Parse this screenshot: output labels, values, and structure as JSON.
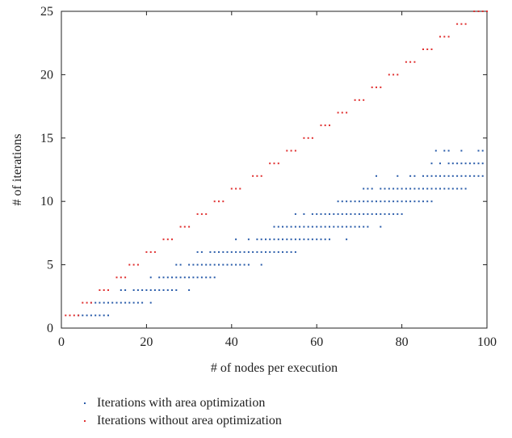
{
  "chart_data": {
    "type": "scatter",
    "title": "",
    "xlabel": "# of nodes per execution",
    "ylabel": "# of iterations",
    "xlim": [
      0,
      100
    ],
    "ylim": [
      0,
      25
    ],
    "xticks": [
      0,
      20,
      40,
      60,
      80,
      100
    ],
    "yticks": [
      0,
      5,
      10,
      15,
      20,
      25
    ],
    "grid": false,
    "legend_position": "bottom",
    "series": [
      {
        "name": "Iterations with area optimization",
        "color": "#2a5caa",
        "points": [
          [
            4,
            1
          ],
          [
            5,
            1
          ],
          [
            6,
            1
          ],
          [
            7,
            1
          ],
          [
            8,
            1
          ],
          [
            9,
            1
          ],
          [
            10,
            1
          ],
          [
            11,
            1
          ],
          [
            7,
            2
          ],
          [
            8,
            2
          ],
          [
            9,
            2
          ],
          [
            10,
            2
          ],
          [
            11,
            2
          ],
          [
            12,
            2
          ],
          [
            13,
            2
          ],
          [
            14,
            2
          ],
          [
            15,
            2
          ],
          [
            16,
            2
          ],
          [
            17,
            2
          ],
          [
            18,
            2
          ],
          [
            19,
            2
          ],
          [
            21,
            2
          ],
          [
            14,
            3
          ],
          [
            15,
            3
          ],
          [
            17,
            3
          ],
          [
            18,
            3
          ],
          [
            19,
            3
          ],
          [
            20,
            3
          ],
          [
            21,
            3
          ],
          [
            22,
            3
          ],
          [
            23,
            3
          ],
          [
            24,
            3
          ],
          [
            25,
            3
          ],
          [
            26,
            3
          ],
          [
            27,
            3
          ],
          [
            30,
            3
          ],
          [
            21,
            4
          ],
          [
            23,
            4
          ],
          [
            24,
            4
          ],
          [
            25,
            4
          ],
          [
            26,
            4
          ],
          [
            27,
            4
          ],
          [
            28,
            4
          ],
          [
            29,
            4
          ],
          [
            30,
            4
          ],
          [
            31,
            4
          ],
          [
            32,
            4
          ],
          [
            33,
            4
          ],
          [
            34,
            4
          ],
          [
            35,
            4
          ],
          [
            36,
            4
          ],
          [
            27,
            5
          ],
          [
            28,
            5
          ],
          [
            30,
            5
          ],
          [
            31,
            5
          ],
          [
            32,
            5
          ],
          [
            33,
            5
          ],
          [
            34,
            5
          ],
          [
            35,
            5
          ],
          [
            36,
            5
          ],
          [
            37,
            5
          ],
          [
            38,
            5
          ],
          [
            39,
            5
          ],
          [
            40,
            5
          ],
          [
            41,
            5
          ],
          [
            42,
            5
          ],
          [
            43,
            5
          ],
          [
            44,
            5
          ],
          [
            47,
            5
          ],
          [
            32,
            6
          ],
          [
            33,
            6
          ],
          [
            35,
            6
          ],
          [
            36,
            6
          ],
          [
            37,
            6
          ],
          [
            38,
            6
          ],
          [
            39,
            6
          ],
          [
            40,
            6
          ],
          [
            41,
            6
          ],
          [
            42,
            6
          ],
          [
            43,
            6
          ],
          [
            44,
            6
          ],
          [
            45,
            6
          ],
          [
            46,
            6
          ],
          [
            47,
            6
          ],
          [
            48,
            6
          ],
          [
            49,
            6
          ],
          [
            50,
            6
          ],
          [
            51,
            6
          ],
          [
            52,
            6
          ],
          [
            53,
            6
          ],
          [
            54,
            6
          ],
          [
            55,
            6
          ],
          [
            41,
            7
          ],
          [
            44,
            7
          ],
          [
            46,
            7
          ],
          [
            47,
            7
          ],
          [
            48,
            7
          ],
          [
            49,
            7
          ],
          [
            50,
            7
          ],
          [
            51,
            7
          ],
          [
            52,
            7
          ],
          [
            53,
            7
          ],
          [
            54,
            7
          ],
          [
            55,
            7
          ],
          [
            56,
            7
          ],
          [
            57,
            7
          ],
          [
            58,
            7
          ],
          [
            59,
            7
          ],
          [
            60,
            7
          ],
          [
            61,
            7
          ],
          [
            62,
            7
          ],
          [
            63,
            7
          ],
          [
            67,
            7
          ],
          [
            50,
            8
          ],
          [
            51,
            8
          ],
          [
            52,
            8
          ],
          [
            53,
            8
          ],
          [
            54,
            8
          ],
          [
            55,
            8
          ],
          [
            56,
            8
          ],
          [
            57,
            8
          ],
          [
            58,
            8
          ],
          [
            59,
            8
          ],
          [
            60,
            8
          ],
          [
            61,
            8
          ],
          [
            62,
            8
          ],
          [
            63,
            8
          ],
          [
            64,
            8
          ],
          [
            65,
            8
          ],
          [
            66,
            8
          ],
          [
            67,
            8
          ],
          [
            68,
            8
          ],
          [
            69,
            8
          ],
          [
            70,
            8
          ],
          [
            71,
            8
          ],
          [
            72,
            8
          ],
          [
            75,
            8
          ],
          [
            55,
            9
          ],
          [
            57,
            9
          ],
          [
            59,
            9
          ],
          [
            60,
            9
          ],
          [
            61,
            9
          ],
          [
            62,
            9
          ],
          [
            63,
            9
          ],
          [
            64,
            9
          ],
          [
            65,
            9
          ],
          [
            66,
            9
          ],
          [
            67,
            9
          ],
          [
            68,
            9
          ],
          [
            69,
            9
          ],
          [
            70,
            9
          ],
          [
            71,
            9
          ],
          [
            72,
            9
          ],
          [
            73,
            9
          ],
          [
            74,
            9
          ],
          [
            75,
            9
          ],
          [
            76,
            9
          ],
          [
            77,
            9
          ],
          [
            78,
            9
          ],
          [
            79,
            9
          ],
          [
            80,
            9
          ],
          [
            65,
            10
          ],
          [
            66,
            10
          ],
          [
            67,
            10
          ],
          [
            68,
            10
          ],
          [
            69,
            10
          ],
          [
            70,
            10
          ],
          [
            71,
            10
          ],
          [
            72,
            10
          ],
          [
            73,
            10
          ],
          [
            74,
            10
          ],
          [
            75,
            10
          ],
          [
            76,
            10
          ],
          [
            77,
            10
          ],
          [
            78,
            10
          ],
          [
            79,
            10
          ],
          [
            80,
            10
          ],
          [
            81,
            10
          ],
          [
            82,
            10
          ],
          [
            83,
            10
          ],
          [
            84,
            10
          ],
          [
            85,
            10
          ],
          [
            86,
            10
          ],
          [
            87,
            10
          ],
          [
            71,
            11
          ],
          [
            72,
            11
          ],
          [
            73,
            11
          ],
          [
            75,
            11
          ],
          [
            76,
            11
          ],
          [
            77,
            11
          ],
          [
            78,
            11
          ],
          [
            79,
            11
          ],
          [
            80,
            11
          ],
          [
            81,
            11
          ],
          [
            82,
            11
          ],
          [
            83,
            11
          ],
          [
            84,
            11
          ],
          [
            85,
            11
          ],
          [
            86,
            11
          ],
          [
            87,
            11
          ],
          [
            88,
            11
          ],
          [
            89,
            11
          ],
          [
            90,
            11
          ],
          [
            91,
            11
          ],
          [
            92,
            11
          ],
          [
            93,
            11
          ],
          [
            94,
            11
          ],
          [
            95,
            11
          ],
          [
            74,
            12
          ],
          [
            79,
            12
          ],
          [
            82,
            12
          ],
          [
            83,
            12
          ],
          [
            85,
            12
          ],
          [
            86,
            12
          ],
          [
            87,
            12
          ],
          [
            88,
            12
          ],
          [
            89,
            12
          ],
          [
            90,
            12
          ],
          [
            91,
            12
          ],
          [
            92,
            12
          ],
          [
            93,
            12
          ],
          [
            94,
            12
          ],
          [
            95,
            12
          ],
          [
            96,
            12
          ],
          [
            97,
            12
          ],
          [
            98,
            12
          ],
          [
            99,
            12
          ],
          [
            87,
            13
          ],
          [
            89,
            13
          ],
          [
            91,
            13
          ],
          [
            92,
            13
          ],
          [
            93,
            13
          ],
          [
            94,
            13
          ],
          [
            95,
            13
          ],
          [
            96,
            13
          ],
          [
            97,
            13
          ],
          [
            98,
            13
          ],
          [
            99,
            13
          ],
          [
            88,
            14
          ],
          [
            90,
            14
          ],
          [
            91,
            14
          ],
          [
            94,
            14
          ],
          [
            98,
            14
          ],
          [
            99,
            14
          ]
        ]
      },
      {
        "name": "Iterations without area optimization",
        "color": "#e03030",
        "points": [
          [
            1,
            1
          ],
          [
            2,
            1
          ],
          [
            3,
            1
          ],
          [
            4,
            1
          ],
          [
            5,
            2
          ],
          [
            6,
            2
          ],
          [
            7,
            2
          ],
          [
            9,
            3
          ],
          [
            10,
            3
          ],
          [
            11,
            3
          ],
          [
            13,
            4
          ],
          [
            14,
            4
          ],
          [
            15,
            4
          ],
          [
            16,
            5
          ],
          [
            17,
            5
          ],
          [
            18,
            5
          ],
          [
            20,
            6
          ],
          [
            21,
            6
          ],
          [
            22,
            6
          ],
          [
            24,
            7
          ],
          [
            25,
            7
          ],
          [
            26,
            7
          ],
          [
            28,
            8
          ],
          [
            29,
            8
          ],
          [
            30,
            8
          ],
          [
            32,
            9
          ],
          [
            33,
            9
          ],
          [
            34,
            9
          ],
          [
            36,
            10
          ],
          [
            37,
            10
          ],
          [
            38,
            10
          ],
          [
            40,
            11
          ],
          [
            41,
            11
          ],
          [
            42,
            11
          ],
          [
            45,
            12
          ],
          [
            46,
            12
          ],
          [
            47,
            12
          ],
          [
            49,
            13
          ],
          [
            50,
            13
          ],
          [
            51,
            13
          ],
          [
            53,
            14
          ],
          [
            54,
            14
          ],
          [
            55,
            14
          ],
          [
            57,
            15
          ],
          [
            58,
            15
          ],
          [
            59,
            15
          ],
          [
            61,
            16
          ],
          [
            62,
            16
          ],
          [
            63,
            16
          ],
          [
            65,
            17
          ],
          [
            66,
            17
          ],
          [
            67,
            17
          ],
          [
            69,
            18
          ],
          [
            70,
            18
          ],
          [
            71,
            18
          ],
          [
            73,
            19
          ],
          [
            74,
            19
          ],
          [
            75,
            19
          ],
          [
            77,
            20
          ],
          [
            78,
            20
          ],
          [
            79,
            20
          ],
          [
            81,
            21
          ],
          [
            82,
            21
          ],
          [
            83,
            21
          ],
          [
            85,
            22
          ],
          [
            86,
            22
          ],
          [
            87,
            22
          ],
          [
            89,
            23
          ],
          [
            90,
            23
          ],
          [
            91,
            23
          ],
          [
            93,
            24
          ],
          [
            94,
            24
          ],
          [
            95,
            24
          ],
          [
            97,
            25
          ],
          [
            98,
            25
          ],
          [
            99,
            25
          ],
          [
            100,
            25
          ]
        ]
      }
    ]
  }
}
